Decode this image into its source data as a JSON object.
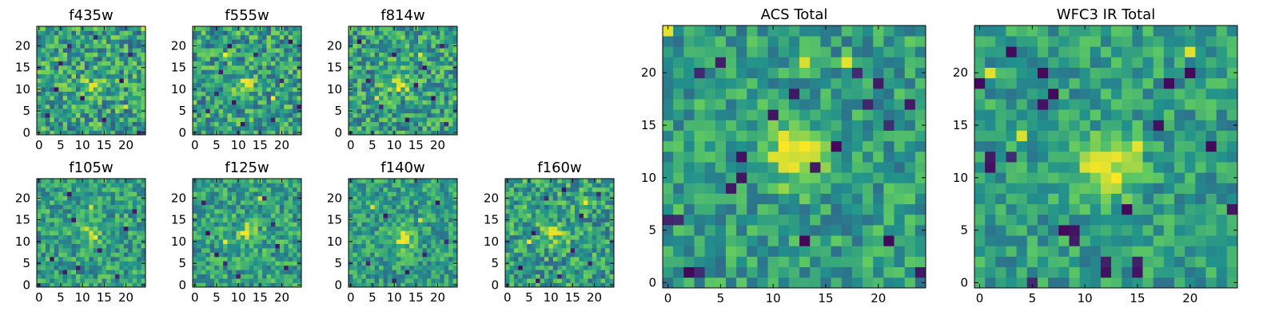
{
  "figure": {
    "colormap": "viridis",
    "colormap_stops": [
      "#440154",
      "#3b528b",
      "#21918c",
      "#5ec962",
      "#fde725"
    ],
    "background": "#ffffff"
  },
  "chart_data": [
    {
      "type": "heatmap",
      "title": "f435w",
      "grid_size": 25,
      "xticks": [
        "0",
        "5",
        "10",
        "15",
        "20"
      ],
      "yticks": [
        "0",
        "5",
        "10",
        "15",
        "20"
      ],
      "texture": "fine speckled noise with a weak bright source near center",
      "center": [
        12,
        11
      ],
      "source_strength": 0.18,
      "noise": 0.28,
      "dark_pixels": [
        [
          2,
          4
        ],
        [
          5,
          16
        ],
        [
          7,
          20
        ],
        [
          10,
          8
        ],
        [
          15,
          3
        ],
        [
          19,
          12
        ],
        [
          21,
          18
        ],
        [
          23,
          0
        ],
        [
          13,
          22
        ],
        [
          4,
          10
        ]
      ],
      "bright_pixels": [
        [
          12,
          11
        ],
        [
          13,
          11
        ],
        [
          11,
          12
        ],
        [
          24,
          24
        ],
        [
          20,
          6
        ]
      ]
    },
    {
      "type": "heatmap",
      "title": "f555w",
      "grid_size": 25,
      "xticks": [
        "0",
        "5",
        "10",
        "15",
        "20"
      ],
      "yticks": [
        "0",
        "5",
        "10",
        "15",
        "20"
      ],
      "texture": "fine speckled noise with a modest central source",
      "center": [
        12,
        11
      ],
      "source_strength": 0.22,
      "noise": 0.27,
      "dark_pixels": [
        [
          3,
          5
        ],
        [
          6,
          14
        ],
        [
          8,
          20
        ],
        [
          9,
          7
        ],
        [
          14,
          18
        ],
        [
          18,
          3
        ],
        [
          20,
          12
        ],
        [
          22,
          21
        ],
        [
          11,
          2
        ],
        [
          5,
          9
        ],
        [
          24,
          6
        ]
      ],
      "bright_pixels": [
        [
          12,
          11
        ],
        [
          13,
          12
        ],
        [
          12,
          12
        ],
        [
          7,
          18
        ],
        [
          18,
          8
        ]
      ]
    },
    {
      "type": "heatmap",
      "title": "f814w",
      "grid_size": 25,
      "xticks": [
        "0",
        "5",
        "10",
        "15",
        "20"
      ],
      "yticks": [
        "0",
        "5",
        "10",
        "15",
        "20"
      ],
      "texture": "fine speckled noise with a brighter compact source",
      "center": [
        11,
        11
      ],
      "source_strength": 0.26,
      "noise": 0.26,
      "dark_pixels": [
        [
          2,
          21
        ],
        [
          4,
          12
        ],
        [
          7,
          6
        ],
        [
          10,
          18
        ],
        [
          13,
          3
        ],
        [
          17,
          15
        ],
        [
          19,
          8
        ],
        [
          21,
          20
        ],
        [
          22,
          2
        ],
        [
          15,
          11
        ]
      ],
      "bright_pixels": [
        [
          11,
          11
        ],
        [
          12,
          11
        ],
        [
          11,
          12
        ],
        [
          16,
          18
        ],
        [
          6,
          8
        ]
      ]
    },
    {
      "type": "heatmap",
      "title": "f105w",
      "grid_size": 25,
      "xticks": [
        "0",
        "5",
        "10",
        "15",
        "20"
      ],
      "yticks": [
        "0",
        "5",
        "10",
        "15",
        "20"
      ],
      "texture": "smoother blotchy noise with a broad central source",
      "center": [
        12,
        12
      ],
      "source_strength": 0.24,
      "noise": 0.22,
      "dark_pixels": [
        [
          3,
          6
        ],
        [
          6,
          3
        ],
        [
          8,
          15
        ],
        [
          9,
          4
        ],
        [
          14,
          8
        ],
        [
          18,
          2
        ],
        [
          20,
          13
        ],
        [
          7,
          21
        ],
        [
          22,
          17
        ]
      ],
      "bright_pixels": [
        [
          12,
          12
        ],
        [
          11,
          13
        ],
        [
          13,
          11
        ],
        [
          12,
          18
        ]
      ]
    },
    {
      "type": "heatmap",
      "title": "f125w",
      "grid_size": 25,
      "xticks": [
        "0",
        "5",
        "10",
        "15",
        "20"
      ],
      "yticks": [
        "0",
        "5",
        "10",
        "15",
        "20"
      ],
      "texture": "smoother blotchy noise with a central source",
      "center": [
        12,
        12
      ],
      "source_strength": 0.26,
      "noise": 0.22,
      "dark_pixels": [
        [
          2,
          19
        ],
        [
          5,
          7
        ],
        [
          7,
          5
        ],
        [
          10,
          2
        ],
        [
          16,
          20
        ],
        [
          19,
          9
        ],
        [
          21,
          4
        ],
        [
          18,
          14
        ],
        [
          3,
          12
        ]
      ],
      "bright_pixels": [
        [
          12,
          12
        ],
        [
          11,
          12
        ],
        [
          12,
          13
        ],
        [
          15,
          20
        ],
        [
          7,
          10
        ]
      ]
    },
    {
      "type": "heatmap",
      "title": "f140w",
      "grid_size": 25,
      "xticks": [
        "0",
        "5",
        "10",
        "15",
        "20"
      ],
      "yticks": [
        "0",
        "5",
        "10",
        "15",
        "20"
      ],
      "texture": "brighter smooth field with an extended central source",
      "center": [
        12,
        11
      ],
      "source_strength": 0.3,
      "noise": 0.2,
      "dark_pixels": [
        [
          4,
          5
        ],
        [
          8,
          16
        ],
        [
          13,
          3
        ],
        [
          17,
          7
        ],
        [
          20,
          19
        ],
        [
          22,
          10
        ],
        [
          10,
          1
        ]
      ],
      "bright_pixels": [
        [
          12,
          11
        ],
        [
          13,
          11
        ],
        [
          11,
          10
        ],
        [
          12,
          12
        ],
        [
          16,
          15
        ],
        [
          5,
          18
        ]
      ]
    },
    {
      "type": "heatmap",
      "title": "f160w",
      "grid_size": 25,
      "xticks": [
        "0",
        "5",
        "10",
        "15",
        "20"
      ],
      "yticks": [
        "0",
        "5",
        "10",
        "15",
        "20"
      ],
      "texture": "speckled noise with a compact bright central source",
      "center": [
        11,
        12
      ],
      "source_strength": 0.32,
      "noise": 0.25,
      "dark_pixels": [
        [
          3,
          4
        ],
        [
          6,
          12
        ],
        [
          9,
          20
        ],
        [
          12,
          2
        ],
        [
          15,
          8
        ],
        [
          17,
          16
        ],
        [
          19,
          5
        ],
        [
          21,
          21
        ],
        [
          13,
          22
        ],
        [
          7,
          1
        ]
      ],
      "bright_pixels": [
        [
          11,
          12
        ],
        [
          12,
          12
        ],
        [
          11,
          13
        ],
        [
          18,
          19
        ],
        [
          5,
          10
        ]
      ]
    },
    {
      "type": "heatmap",
      "title": "ACS Total",
      "grid_size": 25,
      "xticks": [
        "0",
        "5",
        "10",
        "15",
        "20"
      ],
      "yticks": [
        "0",
        "5",
        "10",
        "15",
        "20"
      ],
      "texture": "coarse patchy field with a strong central source",
      "center": [
        12,
        12
      ],
      "source_strength": 0.42,
      "noise": 0.2,
      "dark_pixels": [
        [
          7,
          12
        ],
        [
          7,
          10
        ],
        [
          6,
          9
        ],
        [
          3,
          1
        ],
        [
          1,
          6
        ],
        [
          2,
          1
        ],
        [
          18,
          20
        ],
        [
          20,
          19
        ],
        [
          19,
          17
        ],
        [
          21,
          15
        ],
        [
          12,
          18
        ],
        [
          14,
          11
        ],
        [
          10,
          16
        ],
        [
          23,
          17
        ],
        [
          24,
          1
        ],
        [
          21,
          4
        ],
        [
          13,
          4
        ],
        [
          5,
          21
        ],
        [
          3,
          20
        ],
        [
          16,
          13
        ],
        [
          0,
          6
        ]
      ],
      "bright_pixels": [
        [
          12,
          12
        ],
        [
          11,
          12
        ],
        [
          12,
          11
        ],
        [
          13,
          12
        ],
        [
          11,
          11
        ],
        [
          10,
          12
        ],
        [
          12,
          13
        ],
        [
          0,
          24
        ],
        [
          13,
          21
        ],
        [
          17,
          21
        ]
      ]
    },
    {
      "type": "heatmap",
      "title": "WFC3 IR Total",
      "grid_size": 25,
      "xticks": [
        "0",
        "5",
        "10",
        "15",
        "20"
      ],
      "yticks": [
        "0",
        "5",
        "10",
        "15",
        "20"
      ],
      "texture": "coarse patchy field with a bright extended central source",
      "center": [
        12,
        11
      ],
      "source_strength": 0.45,
      "noise": 0.18,
      "dark_pixels": [
        [
          1,
          12
        ],
        [
          1,
          11
        ],
        [
          3,
          12
        ],
        [
          8,
          5
        ],
        [
          9,
          5
        ],
        [
          9,
          4
        ],
        [
          6,
          20
        ],
        [
          7,
          18
        ],
        [
          6,
          17
        ],
        [
          12,
          2
        ],
        [
          12,
          1
        ],
        [
          15,
          2
        ],
        [
          15,
          1
        ],
        [
          14,
          7
        ],
        [
          18,
          19
        ],
        [
          17,
          15
        ],
        [
          20,
          20
        ],
        [
          22,
          13
        ],
        [
          0,
          19
        ],
        [
          24,
          7
        ],
        [
          5,
          0
        ],
        [
          3,
          22
        ]
      ],
      "bright_pixels": [
        [
          12,
          11
        ],
        [
          12,
          12
        ],
        [
          11,
          11
        ],
        [
          12,
          10
        ],
        [
          11,
          12
        ],
        [
          13,
          12
        ],
        [
          10,
          11
        ],
        [
          4,
          14
        ],
        [
          15,
          13
        ],
        [
          1,
          20
        ],
        [
          20,
          22
        ]
      ]
    }
  ]
}
